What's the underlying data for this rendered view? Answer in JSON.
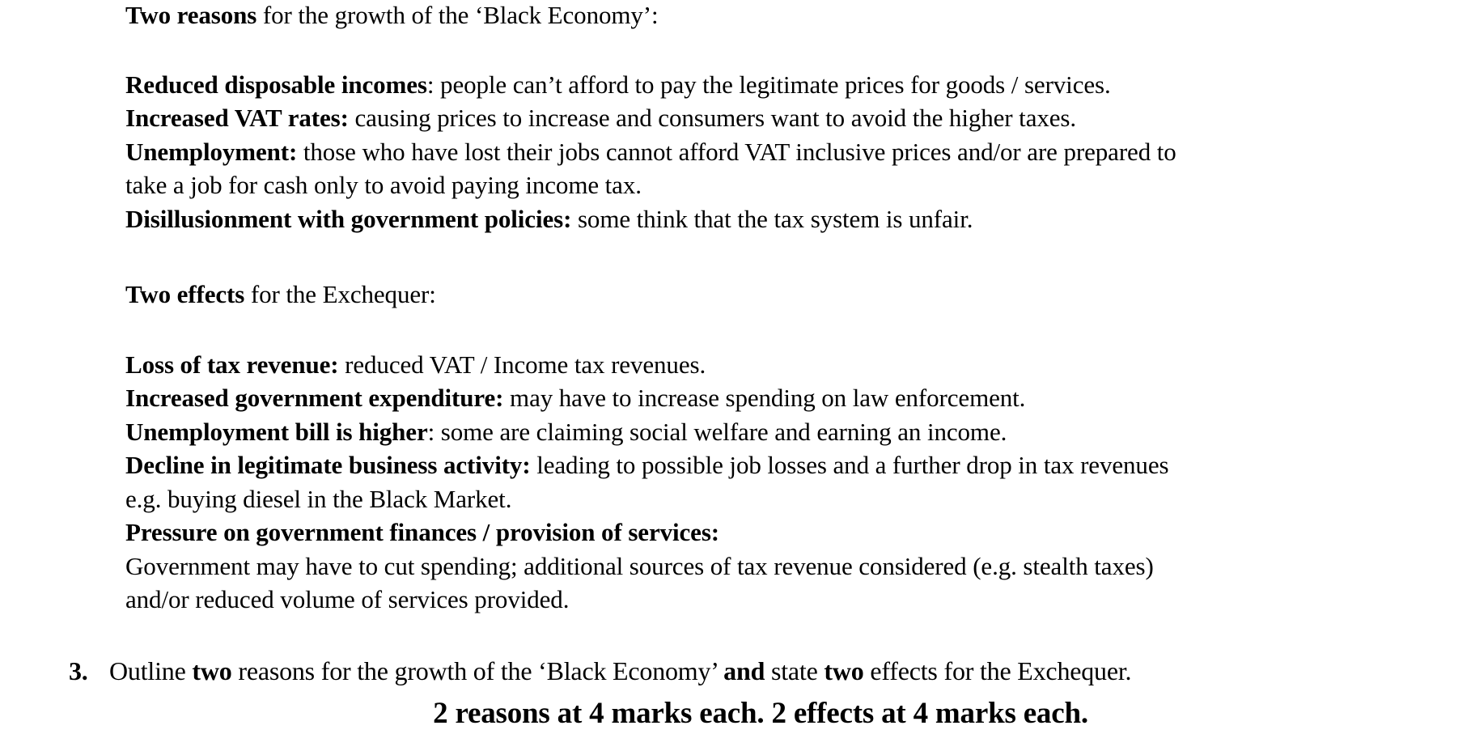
{
  "page": {
    "background_color": "#ffffff",
    "text_color": "#000000"
  },
  "document": {
    "sections": [
      {
        "id": "reasons-heading",
        "name": "reasons-heading",
        "lines": [
          [
            {
              "t": "Two reasons",
              "b": true
            },
            {
              "t": " for the growth of the ‘Black Economy’:",
              "b": false
            }
          ]
        ]
      },
      {
        "id": "reasons-list",
        "name": "reasons-list",
        "lines": [
          [
            {
              "t": "Reduced disposable incomes",
              "b": true
            },
            {
              "t": ": people can’t afford to pay the legitimate prices for goods / services.",
              "b": false
            }
          ],
          [
            {
              "t": "Increased VAT rates:",
              "b": true
            },
            {
              "t": " causing prices to increase and consumers want to avoid the higher taxes.",
              "b": false
            }
          ],
          [
            {
              "t": "Unemployment:",
              "b": true
            },
            {
              "t": " those who have lost their jobs cannot afford VAT inclusive prices and/or are prepared to",
              "b": false
            }
          ],
          [
            {
              "t": "take a job for cash only to avoid paying income tax.",
              "b": false
            }
          ],
          [
            {
              "t": "Disillusionment with government policies:",
              "b": true
            },
            {
              "t": " some think that the tax system is unfair.",
              "b": false
            }
          ]
        ]
      },
      {
        "id": "effects-heading",
        "name": "effects-heading",
        "lines": [
          [
            {
              "t": "Two effects",
              "b": true
            },
            {
              "t": " for the Exchequer:",
              "b": false
            }
          ]
        ]
      },
      {
        "id": "effects-list",
        "name": "effects-list",
        "lines": [
          [
            {
              "t": "Loss of tax revenue:",
              "b": true
            },
            {
              "t": " reduced VAT / Income tax revenues.",
              "b": false
            }
          ],
          [
            {
              "t": "Increased government expenditure:",
              "b": true
            },
            {
              "t": " may have to increase spending on law enforcement.",
              "b": false
            }
          ],
          [
            {
              "t": "Unemployment bill is higher",
              "b": true
            },
            {
              "t": ": some are claiming social welfare and earning an income.",
              "b": false
            }
          ],
          [
            {
              "t": "Decline in legitimate business activity:",
              "b": true
            },
            {
              "t": " leading to possible job losses and a further drop in tax revenues",
              "b": false
            }
          ],
          [
            {
              "t": "e.g. buying diesel in the Black Market.",
              "b": false
            }
          ],
          [
            {
              "t": "Pressure on government finances / provision of services:",
              "b": true
            }
          ],
          [
            {
              "t": "Government may have to cut spending; additional sources of tax revenue considered (e.g. stealth taxes)",
              "b": false
            }
          ],
          [
            {
              "t": "and/or reduced volume of services provided.",
              "b": false
            }
          ]
        ]
      },
      {
        "id": "question",
        "name": "question-item",
        "number": "3.",
        "lines": [
          [
            {
              "t": "Outline ",
              "b": false
            },
            {
              "t": "two",
              "b": true
            },
            {
              "t": " reasons for the growth of the ‘Black Economy’ ",
              "b": false
            },
            {
              "t": "and",
              "b": true
            },
            {
              "t": " state ",
              "b": false
            },
            {
              "t": "two",
              "b": true
            },
            {
              "t": " effects for the Exchequer.",
              "b": false
            }
          ]
        ]
      },
      {
        "id": "marks",
        "name": "marks-scheme-line",
        "lines": [
          [
            {
              "t": "2 reasons at 4 marks each. 2 effects at 4 marks each.",
              "b": true
            }
          ]
        ]
      }
    ]
  }
}
